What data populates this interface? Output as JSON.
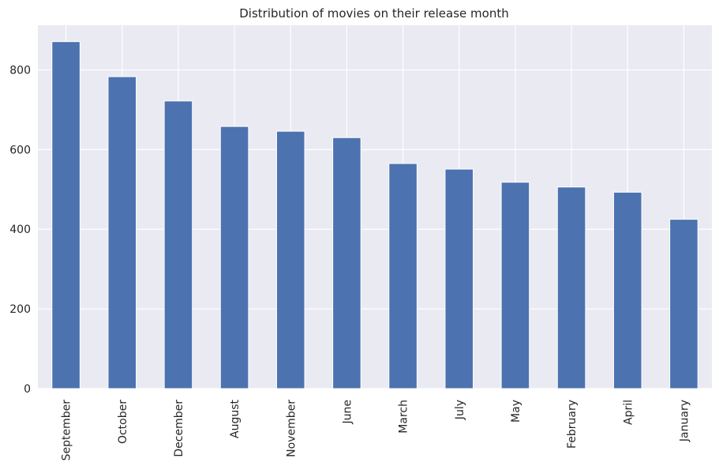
{
  "chart_data": {
    "type": "bar",
    "title": "Distribution of movies on their release month",
    "xlabel": "",
    "ylabel": "",
    "categories": [
      "September",
      "October",
      "December",
      "August",
      "November",
      "June",
      "March",
      "July",
      "May",
      "February",
      "April",
      "January"
    ],
    "values": [
      871,
      783,
      722,
      658,
      646,
      630,
      565,
      551,
      518,
      506,
      493,
      425
    ],
    "ylim": [
      0,
      912
    ],
    "yticks": [
      0,
      200,
      400,
      600,
      800
    ],
    "grid": true,
    "legend": "none",
    "x_tick_rotation": "vertical",
    "colors": {
      "bar": "#4c72b0",
      "plot_background": "#eaeaf2",
      "grid": "#ffffff",
      "text": "#262626"
    }
  }
}
